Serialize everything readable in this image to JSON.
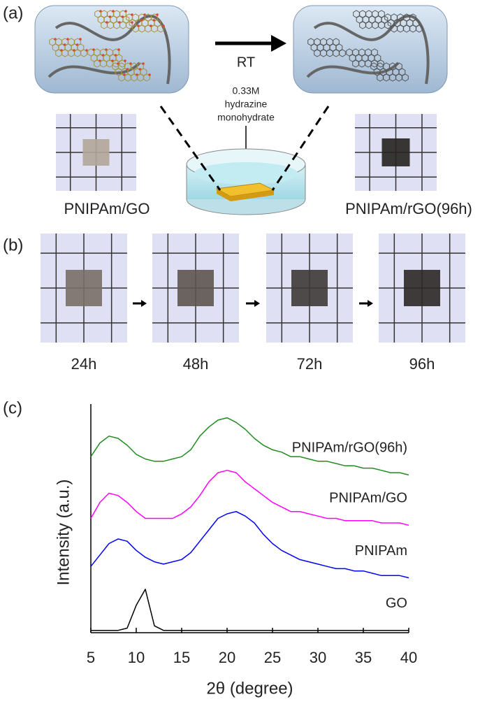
{
  "figure": {
    "panel_a": {
      "label": "(a)",
      "arrow_label": "RT",
      "reagent": [
        "0.33M",
        "hydrazine",
        "monohydrate"
      ],
      "left_label": "PNIPAm/GO",
      "right_label": "PNIPAm/rGO(96h)"
    },
    "panel_b": {
      "label": "(b)",
      "times": [
        "24h",
        "48h",
        "72h",
        "96h"
      ]
    },
    "panel_c": {
      "label": "(c)"
    }
  },
  "chart_data": {
    "type": "line",
    "xlabel": "2θ (degree)",
    "ylabel": "Intensity (a.u.)",
    "xlim": [
      5,
      40
    ],
    "xticks": [
      5,
      10,
      15,
      20,
      25,
      30,
      35,
      40
    ],
    "ylim": [
      0,
      100
    ],
    "x": [
      5,
      6,
      7,
      8,
      9,
      10,
      11,
      12,
      13,
      14,
      15,
      16,
      17,
      18,
      19,
      20,
      21,
      22,
      23,
      24,
      25,
      26,
      27,
      28,
      29,
      30,
      31,
      32,
      33,
      34,
      35,
      36,
      37,
      38,
      39,
      40
    ],
    "series": [
      {
        "name": "PNIPAm/rGO(96h)",
        "color": "#228b22",
        "values": [
          77,
          83,
          86,
          85,
          82,
          78,
          76,
          75,
          75,
          76,
          77,
          80,
          86,
          90,
          93,
          94,
          92,
          89,
          85,
          82,
          80,
          79,
          77,
          77,
          76,
          75,
          75,
          74,
          73,
          73,
          72,
          72,
          71,
          70,
          70,
          69
        ]
      },
      {
        "name": "PNIPAm/GO",
        "color": "#ff00ff",
        "values": [
          50,
          57,
          61,
          60,
          57,
          53,
          50,
          50,
          50,
          50,
          52,
          55,
          60,
          66,
          70,
          71,
          70,
          66,
          63,
          60,
          57,
          55,
          53,
          53,
          52,
          51,
          50,
          50,
          49,
          49,
          49,
          49,
          48,
          48,
          48,
          47
        ]
      },
      {
        "name": "PNIPAm",
        "color": "#0000ff",
        "values": [
          29,
          34,
          39,
          41,
          40,
          36,
          33,
          31,
          30,
          31,
          32,
          35,
          40,
          45,
          50,
          52,
          53,
          51,
          48,
          43,
          39,
          36,
          34,
          32,
          31,
          30,
          29,
          28,
          28,
          27,
          27,
          26,
          25,
          25,
          25,
          24
        ]
      },
      {
        "name": "GO",
        "color": "#000000",
        "values": [
          1,
          1,
          1,
          1,
          2,
          12,
          19,
          3,
          1,
          1,
          1,
          1,
          1,
          1,
          1,
          1,
          1,
          1,
          1,
          1,
          1,
          1,
          1,
          1,
          1,
          1,
          1,
          1,
          1,
          1,
          1,
          1,
          1,
          1,
          1,
          1
        ]
      }
    ]
  }
}
